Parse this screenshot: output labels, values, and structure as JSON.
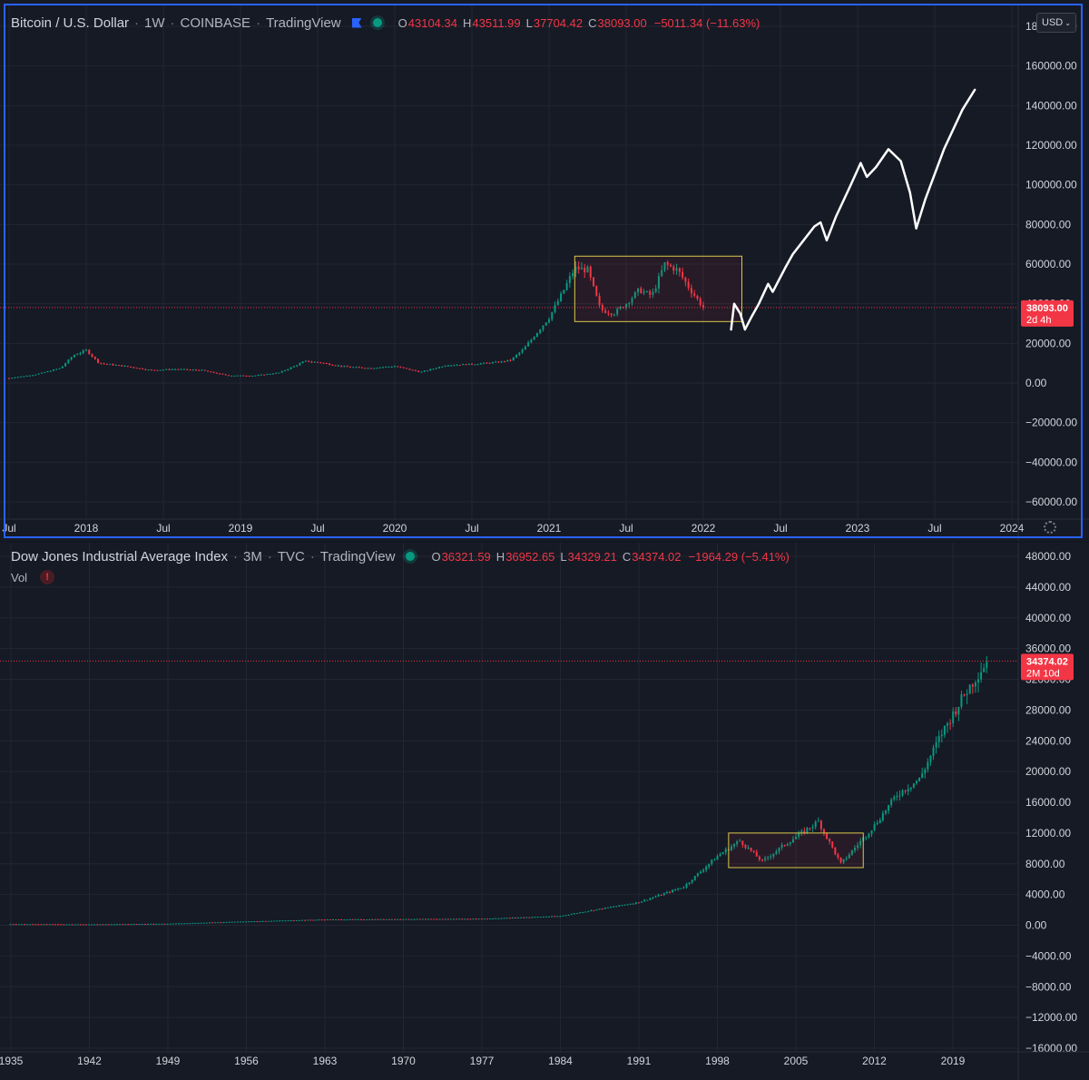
{
  "colors": {
    "background": "#161a25",
    "grid": "#232632",
    "up": "#089981",
    "down": "#f23645",
    "box": "#d9c84a",
    "drawing": "#ffffff",
    "selection": "#2962ff"
  },
  "top": {
    "legend": {
      "symbol": "Bitcoin / U.S. Dollar",
      "interval": "1W",
      "exchange": "COINBASE",
      "source": "TradingView",
      "o_label": "O",
      "o": "43104.34",
      "h_label": "H",
      "h": "43511.99",
      "l_label": "L",
      "l": "37704.42",
      "c_label": "C",
      "c": "38093.00",
      "change": "−5011.34 (−11.63%)"
    },
    "currency_button": "USD",
    "price_tag": {
      "price": "38093.00",
      "countdown": "2d 4h"
    },
    "y_labels": [
      "180000.00",
      "160000.00",
      "140000.00",
      "120000.00",
      "100000.00",
      "80000.00",
      "60000.00",
      "40000.00",
      "20000.00",
      "0.00",
      "−20000.00",
      "−40000.00",
      "−60000.00"
    ],
    "x_labels": [
      "Jul",
      "2018",
      "Jul",
      "2019",
      "Jul",
      "2020",
      "Jul",
      "2021",
      "Jul",
      "2022",
      "Jul",
      "2023",
      "Jul",
      "2024"
    ]
  },
  "bottom": {
    "legend": {
      "symbol": "Dow Jones Industrial Average Index",
      "interval": "3M",
      "exchange": "TVC",
      "source": "TradingView",
      "o_label": "O",
      "o": "36321.59",
      "h_label": "H",
      "h": "36952.65",
      "l_label": "L",
      "l": "34329.21",
      "c_label": "C",
      "c": "34374.02",
      "change": "−1964.29 (−5.41%)"
    },
    "vol_label": "Vol",
    "vol_warning": "!",
    "price_tag": {
      "price": "34374.02",
      "countdown": "2M 10d"
    },
    "y_labels": [
      "48000.00",
      "44000.00",
      "40000.00",
      "36000.00",
      "32000.00",
      "28000.00",
      "24000.00",
      "20000.00",
      "16000.00",
      "12000.00",
      "8000.00",
      "4000.00",
      "0.00",
      "−4000.00",
      "−8000.00",
      "−12000.00",
      "−16000.00"
    ],
    "x_labels": [
      "1935",
      "1942",
      "1949",
      "1956",
      "1963",
      "1970",
      "1977",
      "1984",
      "1991",
      "1998",
      "2005",
      "2012",
      "2019"
    ]
  },
  "chart_data": [
    {
      "type": "candlestick",
      "title": "Bitcoin / U.S. Dollar · 1W · COINBASE",
      "x_range": [
        "2017-07",
        "2024-01"
      ],
      "ylim": [
        -60000,
        180000
      ],
      "last_price": 38093.0,
      "series": [
        {
          "name": "BTCUSD",
          "x": [
            "2017-07",
            "2017-09",
            "2017-11",
            "2017-12",
            "2018-01",
            "2018-02",
            "2018-04",
            "2018-06",
            "2018-08",
            "2018-10",
            "2018-12",
            "2019-02",
            "2019-04",
            "2019-05",
            "2019-06",
            "2019-07",
            "2019-09",
            "2019-11",
            "2020-01",
            "2020-03",
            "2020-05",
            "2020-07",
            "2020-09",
            "2020-10",
            "2020-11",
            "2020-12",
            "2021-01",
            "2021-02",
            "2021-03",
            "2021-04",
            "2021-05",
            "2021-06",
            "2021-07",
            "2021-08",
            "2021-09",
            "2021-10",
            "2021-11",
            "2021-12",
            "2022-01"
          ],
          "values": [
            2500,
            4200,
            7500,
            14000,
            16500,
            10000,
            8500,
            6500,
            7000,
            6400,
            3800,
            3700,
            5200,
            8000,
            11000,
            10500,
            8300,
            7500,
            8500,
            5500,
            9000,
            9500,
            10500,
            11500,
            17000,
            25000,
            33000,
            45000,
            58000,
            57000,
            37000,
            35000,
            40000,
            47000,
            44000,
            60000,
            57000,
            47000,
            38093
          ]
        }
      ],
      "annotations": [
        {
          "type": "rectangle",
          "x": [
            "2021-03",
            "2022-04"
          ],
          "y": [
            31000,
            64000
          ]
        },
        {
          "type": "freehand-projection",
          "x": [
            "2022-03",
            "2023-05"
          ],
          "y": [
            27000,
            148000
          ]
        }
      ]
    },
    {
      "type": "candlestick",
      "title": "Dow Jones Industrial Average Index · 3M · TVC",
      "x_range": [
        "1935",
        "2024"
      ],
      "ylim": [
        -16000,
        48000
      ],
      "last_price": 34374.02,
      "series": [
        {
          "name": "DJI",
          "x": [
            1935,
            1942,
            1949,
            1956,
            1963,
            1970,
            1977,
            1984,
            1987,
            1991,
            1995,
            1998,
            2000,
            2002,
            2004,
            2007,
            2009,
            2012,
            2014,
            2016,
            2018,
            2020,
            2022
          ],
          "values": [
            150,
            120,
            200,
            500,
            750,
            800,
            850,
            1200,
            2000,
            3000,
            5000,
            9000,
            11000,
            8300,
            10500,
            13500,
            8000,
            13000,
            17000,
            19000,
            25000,
            30000,
            34374
          ]
        }
      ],
      "annotations": [
        {
          "type": "rectangle",
          "x": [
            "1999",
            "2011"
          ],
          "y": [
            7500,
            12000
          ]
        }
      ]
    }
  ]
}
